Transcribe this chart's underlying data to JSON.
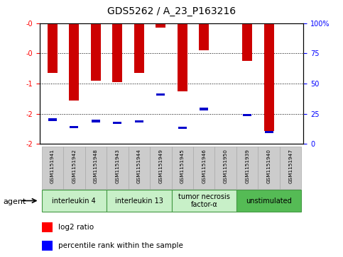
{
  "title": "GDS5262 / A_23_P163216",
  "samples": [
    "GSM1151941",
    "GSM1151942",
    "GSM1151948",
    "GSM1151943",
    "GSM1151944",
    "GSM1151949",
    "GSM1151945",
    "GSM1151946",
    "GSM1151950",
    "GSM1151939",
    "GSM1151940",
    "GSM1151947"
  ],
  "log2_values": [
    -0.82,
    -1.28,
    -0.95,
    -0.98,
    -0.82,
    -0.07,
    -1.13,
    -0.45,
    0.0,
    -0.62,
    -1.78,
    0.0
  ],
  "percentile_values": [
    -1.6,
    -1.72,
    -1.62,
    -1.65,
    -1.63,
    -1.18,
    -1.73,
    -1.42,
    0.0,
    -1.52,
    -1.8,
    0.0
  ],
  "groups": [
    {
      "label": "interleukin 4",
      "indices": [
        0,
        1,
        2
      ],
      "color": "#c8f0c8",
      "border_color": "#449944"
    },
    {
      "label": "interleukin 13",
      "indices": [
        3,
        4,
        5
      ],
      "color": "#c8f0c8",
      "border_color": "#449944"
    },
    {
      "label": "tumor necrosis\nfactor-α",
      "indices": [
        6,
        7,
        8
      ],
      "color": "#c8f0c8",
      "border_color": "#449944"
    },
    {
      "label": "unstimulated",
      "indices": [
        9,
        10,
        11
      ],
      "color": "#55bb55",
      "border_color": "#449944"
    }
  ],
  "bar_color": "#cc0000",
  "blue_marker_color": "#0000cc",
  "ylim_left": [
    -2.0,
    0.0
  ],
  "ylim_right": [
    0,
    100
  ],
  "yticks_left": [
    0.0,
    -0.5,
    -1.0,
    -1.5,
    -2.0
  ],
  "yticks_right": [
    0,
    25,
    50,
    75,
    100
  ],
  "sample_box_color": "#cccccc",
  "bar_width": 0.45,
  "title_fontsize": 10,
  "tick_fontsize": 7,
  "label_fontsize": 8
}
